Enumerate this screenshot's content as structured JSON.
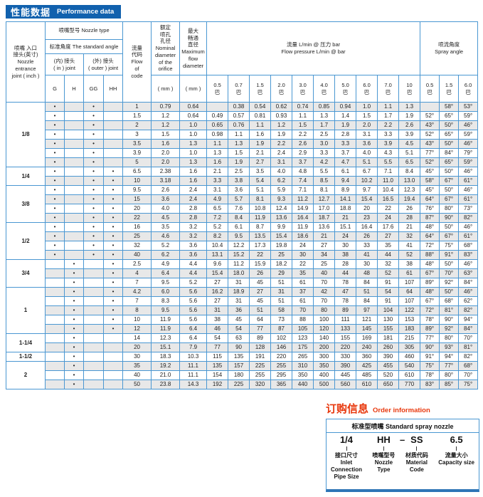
{
  "title": {
    "zh": "性能数据",
    "en": "Performance data"
  },
  "table": {
    "inlet_header_lines": [
      "喷嘴 入口",
      "接头(英寸)",
      "Nozzle",
      "entrance",
      "joint ( inch )"
    ],
    "nozzle_type_header": "喷嘴型号 Nozzle type",
    "standard_angle_header": "标准角度 The standard angle",
    "in_joint_lines": [
      "(内) 接头",
      "( in ) joint"
    ],
    "outer_joint_lines": [
      "(外) 接头",
      "( outer ) joint"
    ],
    "joint_cols": [
      "G",
      "H",
      "GG",
      "HH"
    ],
    "flow_code_lines": [
      "流量",
      "代码",
      "Flow",
      "of",
      "code"
    ],
    "orifice_lines": [
      "额定",
      "喷孔",
      "孔径",
      "Nominal",
      "diameter",
      "of the",
      "orifice"
    ],
    "max_flow_lines": [
      "最大",
      "畅通",
      "直径",
      "Maximum",
      "flow",
      "diameter"
    ],
    "mm_label": "( mm )",
    "flow_pressure_lines": [
      "流量 L/min @ 压力 bar",
      "Flow pressure L/min @ bar"
    ],
    "spray_angle_lines": [
      "喷流角度",
      "Spray angle"
    ],
    "bar_suffix": "巴",
    "flow_pressures": [
      "0.5",
      "0.7",
      "1.5",
      "2.0",
      "3.0",
      "4.0",
      "5.0",
      "6.0",
      "7.0",
      "10"
    ],
    "angle_pressures": [
      "0.5",
      "1.5",
      "6.0"
    ],
    "groups": [
      {
        "size": "1/8",
        "rows": [
          {
            "flow": "1",
            "orifice": "0.79",
            "max": "0.64",
            "dots": [
              "G",
              "GG"
            ],
            "flows": [
              "",
              "0.38",
              "0.54",
              "0.62",
              "0.74",
              "0.85",
              "0.94",
              "1.0",
              "1.1",
              "1.3"
            ],
            "angles": [
              "",
              "58°",
              "53°"
            ]
          },
          {
            "flow": "1.5",
            "orifice": "1.2",
            "max": "0.64",
            "dots": [
              "G",
              "GG"
            ],
            "flows": [
              "0.49",
              "0.57",
              "0.81",
              "0.93",
              "1.1",
              "1.3",
              "1.4",
              "1.5",
              "1.7",
              "1.9"
            ],
            "angles": [
              "52°",
              "65°",
              "59°"
            ]
          },
          {
            "flow": "2",
            "orifice": "1.2",
            "max": "1.0",
            "dots": [
              "G",
              "GG"
            ],
            "flows": [
              "0.65",
              "0.76",
              "1.1",
              "1.2",
              "1.5",
              "1.7",
              "1.9",
              "2.0",
              "2.2",
              "2.6"
            ],
            "angles": [
              "43°",
              "50°",
              "46°"
            ]
          },
          {
            "flow": "3",
            "orifice": "1.5",
            "max": "1.0",
            "dots": [
              "G",
              "GG"
            ],
            "flows": [
              "0.98",
              "1.1",
              "1.6",
              "1.9",
              "2.2",
              "2.5",
              "2.8",
              "3.1",
              "3.3",
              "3.9"
            ],
            "angles": [
              "52°",
              "65°",
              "59°"
            ]
          },
          {
            "flow": "3.5",
            "orifice": "1.6",
            "max": "1.3",
            "dots": [
              "G",
              "GG"
            ],
            "flows": [
              "1.1",
              "1.3",
              "1.9",
              "2.2",
              "2.6",
              "3.0",
              "3.3",
              "3.6",
              "3.9",
              "4.5"
            ],
            "angles": [
              "43°",
              "50°",
              "46°"
            ]
          },
          {
            "flow": "3.9",
            "orifice": "2.0",
            "max": "1.0",
            "dots": [
              "G",
              "GG"
            ],
            "flows": [
              "1.3",
              "1.5",
              "2.1",
              "2.4",
              "2.9",
              "3.3",
              "3.7",
              "4.0",
              "4.3",
              "5.1"
            ],
            "angles": [
              "77°",
              "84°",
              "79°"
            ]
          },
          {
            "flow": "5",
            "orifice": "2.0",
            "max": "1.3",
            "dots": [
              "G",
              "GG"
            ],
            "flows": [
              "1.6",
              "1.9",
              "2.7",
              "3.1",
              "3.7",
              "4.2",
              "4.7",
              "5.1",
              "5.5",
              "6.5"
            ],
            "angles": [
              "52°",
              "65°",
              "59°"
            ]
          }
        ]
      },
      {
        "size": "1/4",
        "rows": [
          {
            "flow": "6.5",
            "orifice": "2.38",
            "max": "1.6",
            "dots": [
              "G",
              "GG",
              "HH"
            ],
            "flows": [
              "2.1",
              "2.5",
              "3.5",
              "4.0",
              "4.8",
              "5.5",
              "6.1",
              "6.7",
              "7.1",
              "8.4"
            ],
            "angles": [
              "45°",
              "50°",
              "46°"
            ]
          },
          {
            "flow": "10",
            "orifice": "3.18",
            "max": "1.6",
            "dots": [
              "G",
              "GG",
              "HH"
            ],
            "flows": [
              "3.3",
              "3.8",
              "5.4",
              "6.2",
              "7.4",
              "8.5",
              "9.4",
              "10.2",
              "11.0",
              "13.0"
            ],
            "angles": [
              "58°",
              "67°",
              "61°"
            ]
          }
        ]
      },
      {
        "size": "3/8",
        "rows": [
          {
            "flow": "9.5",
            "orifice": "2.6",
            "max": "2.4",
            "dots": [
              "G",
              "GG",
              "HH"
            ],
            "flows": [
              "3.1",
              "3.6",
              "5.1",
              "5.9",
              "7.1",
              "8.1",
              "8.9",
              "9.7",
              "10.4",
              "12.3"
            ],
            "angles": [
              "45°",
              "50°",
              "46°"
            ]
          },
          {
            "flow": "15",
            "orifice": "3.6",
            "max": "2.4",
            "dots": [
              "G",
              "GG",
              "HH"
            ],
            "flows": [
              "4.9",
              "5.7",
              "8.1",
              "9.3",
              "11.2",
              "12.7",
              "14.1",
              "15.4",
              "16.5",
              "19.4"
            ],
            "angles": [
              "64°",
              "67°",
              "61°"
            ]
          },
          {
            "flow": "20",
            "orifice": "4.0",
            "max": "2.8",
            "dots": [
              "G",
              "GG",
              "HH"
            ],
            "flows": [
              "6.5",
              "7.6",
              "10.8",
              "12.4",
              "14.9",
              "17.0",
              "18.8",
              "20",
              "22",
              "26"
            ],
            "angles": [
              "76°",
              "80°",
              "73°"
            ]
          },
          {
            "flow": "22",
            "orifice": "4.5",
            "max": "2.8",
            "dots": [
              "G",
              "GG",
              "HH"
            ],
            "flows": [
              "7.2",
              "8.4",
              "11.9",
              "13.6",
              "16.4",
              "18.7",
              "21",
              "23",
              "24",
              "28"
            ],
            "angles": [
              "87°",
              "90°",
              "82°"
            ]
          }
        ]
      },
      {
        "size": "1/2",
        "rows": [
          {
            "flow": "16",
            "orifice": "3.5",
            "max": "3.2",
            "dots": [
              "G",
              "GG",
              "HH"
            ],
            "flows": [
              "5.2",
              "6.1",
              "8.7",
              "9.9",
              "11.9",
              "13.6",
              "15.1",
              "16.4",
              "17.6",
              "21"
            ],
            "angles": [
              "48°",
              "50°",
              "46°"
            ]
          },
          {
            "flow": "25",
            "orifice": "4.6",
            "max": "3.2",
            "dots": [
              "G",
              "GG",
              "HH"
            ],
            "flows": [
              "8.2",
              "9.5",
              "13.5",
              "15.4",
              "18.6",
              "21",
              "24",
              "26",
              "27",
              "32"
            ],
            "angles": [
              "64°",
              "67°",
              "61°"
            ]
          },
          {
            "flow": "32",
            "orifice": "5.2",
            "max": "3.6",
            "dots": [
              "G",
              "GG",
              "HH"
            ],
            "flows": [
              "10.4",
              "12.2",
              "17.3",
              "19.8",
              "24",
              "27",
              "30",
              "33",
              "35",
              "41"
            ],
            "angles": [
              "72°",
              "75°",
              "68°"
            ]
          },
          {
            "flow": "40",
            "orifice": "6.2",
            "max": "3.6",
            "dots": [
              "G",
              "GG",
              "HH"
            ],
            "flows": [
              "13.1",
              "15.2",
              "22",
              "25",
              "30",
              "34",
              "38",
              "41",
              "44",
              "52"
            ],
            "angles": [
              "88°",
              "91°",
              "83°"
            ]
          }
        ]
      },
      {
        "size": "3/4",
        "rows": [
          {
            "flow": "2.5",
            "orifice": "4.9",
            "max": "4.4",
            "dots": [
              "H",
              "HH"
            ],
            "flows": [
              "9.6",
              "11.2",
              "15.9",
              "18.2",
              "22",
              "25",
              "28",
              "30",
              "32",
              "38"
            ],
            "angles": [
              "48°",
              "50°",
              "46°"
            ]
          },
          {
            "flow": "4",
            "orifice": "6.4",
            "max": "4.4",
            "dots": [
              "H",
              "HH"
            ],
            "flows": [
              "15.4",
              "18.0",
              "26",
              "29",
              "35",
              "40",
              "44",
              "48",
              "52",
              "61"
            ],
            "angles": [
              "67°",
              "70°",
              "63°"
            ]
          },
          {
            "flow": "7",
            "orifice": "9.5",
            "max": "5.2",
            "dots": [
              "H",
              "HH"
            ],
            "flows": [
              "27",
              "31",
              "45",
              "51",
              "61",
              "70",
              "78",
              "84",
              "91",
              "107"
            ],
            "angles": [
              "89°",
              "92°",
              "84°"
            ]
          }
        ]
      },
      {
        "size": "1",
        "rows": [
          {
            "flow": "4.2",
            "orifice": "6.0",
            "max": "5.6",
            "dots": [
              "H",
              "HH"
            ],
            "flows": [
              "16.2",
              "18.9",
              "27",
              "31",
              "37",
              "42",
              "47",
              "51",
              "54",
              "64"
            ],
            "angles": [
              "48°",
              "50°",
              "46°"
            ]
          },
          {
            "flow": "7",
            "orifice": "8.3",
            "max": "5.6",
            "dots": [
              "H",
              "HH"
            ],
            "flows": [
              "27",
              "31",
              "45",
              "51",
              "61",
              "70",
              "78",
              "84",
              "91",
              "107"
            ],
            "angles": [
              "67°",
              "68°",
              "62°"
            ]
          },
          {
            "flow": "8",
            "orifice": "9.5",
            "max": "5.6",
            "dots": [
              "H",
              "HH"
            ],
            "flows": [
              "31",
              "36",
              "51",
              "58",
              "70",
              "80",
              "89",
              "97",
              "104",
              "122"
            ],
            "angles": [
              "72°",
              "81°",
              "82°"
            ]
          },
          {
            "flow": "10",
            "orifice": "11.9",
            "max": "5.6",
            "dots": [
              "H",
              "HH"
            ],
            "flows": [
              "38",
              "45",
              "64",
              "73",
              "88",
              "100",
              "111",
              "121",
              "130",
              "153"
            ],
            "angles": [
              "78°",
              "90°",
              "94°"
            ]
          },
          {
            "flow": "12",
            "orifice": "11.9",
            "max": "6.4",
            "dots": [
              "H",
              "HH"
            ],
            "flows": [
              "46",
              "54",
              "77",
              "87",
              "105",
              "120",
              "133",
              "145",
              "155",
              "183"
            ],
            "angles": [
              "89°",
              "92°",
              "84°"
            ]
          }
        ]
      },
      {
        "size": "1-1/4",
        "rows": [
          {
            "flow": "14",
            "orifice": "12.3",
            "max": "6.4",
            "dots": [
              "H"
            ],
            "flows": [
              "54",
              "63",
              "89",
              "102",
              "123",
              "140",
              "155",
              "169",
              "181",
              "215"
            ],
            "angles": [
              "77°",
              "80°",
              "70°"
            ]
          },
          {
            "flow": "20",
            "orifice": "15.1",
            "max": "7.9",
            "dots": [
              "H"
            ],
            "flows": [
              "77",
              "90",
              "128",
              "146",
              "175",
              "200",
              "220",
              "240",
              "260",
              "305"
            ],
            "angles": [
              "90°",
              "93°",
              "81°"
            ]
          }
        ]
      },
      {
        "size": "1-1/2",
        "rows": [
          {
            "flow": "30",
            "orifice": "18.3",
            "max": "10.3",
            "dots": [
              "H"
            ],
            "flows": [
              "115",
              "135",
              "191",
              "220",
              "265",
              "300",
              "330",
              "360",
              "390",
              "460"
            ],
            "angles": [
              "91°",
              "94°",
              "82°"
            ]
          }
        ]
      },
      {
        "size": "2",
        "rows": [
          {
            "flow": "35",
            "orifice": "19.2",
            "max": "11.1",
            "dots": [
              "H"
            ],
            "flows": [
              "135",
              "157",
              "225",
              "255",
              "310",
              "350",
              "390",
              "425",
              "455",
              "540"
            ],
            "angles": [
              "75°",
              "77°",
              "68°"
            ]
          },
          {
            "flow": "40",
            "orifice": "21.0",
            "max": "11.1",
            "dots": [
              "H"
            ],
            "flows": [
              "154",
              "180",
              "255",
              "295",
              "350",
              "400",
              "445",
              "485",
              "520",
              "610"
            ],
            "angles": [
              "78°",
              "80°",
              "70°"
            ]
          },
          {
            "flow": "50",
            "orifice": "23.8",
            "max": "14.3",
            "dots": [
              "H"
            ],
            "flows": [
              "192",
              "225",
              "320",
              "365",
              "440",
              "500",
              "560",
              "610",
              "650",
              "770"
            ],
            "angles": [
              "83°",
              "85°",
              "75°"
            ]
          }
        ]
      }
    ]
  },
  "order": {
    "title_zh": "订购信息",
    "title_en": "Order information",
    "box_header": "标准型喷嘴 Standard spray nozzle",
    "dash": "–",
    "columns": [
      {
        "code": "1/4",
        "label_lines": [
          "接口尺寸",
          "Inlet",
          "Connection",
          "Pipe Size"
        ]
      },
      {
        "code": "HH",
        "label_lines": [
          "喷嘴型号",
          "Nozzle",
          "Type"
        ]
      },
      {
        "code": "SS",
        "label_lines": [
          "材质代码",
          "Material",
          "Code"
        ]
      },
      {
        "code": "6.5",
        "label_lines": [
          "流量大小",
          "Capacity size"
        ]
      }
    ]
  },
  "colors": {
    "accent_blue": "#1161ae",
    "border_blue": "#4a97d2",
    "stripe_gray": "#e8e8e8",
    "red": "#e8380d"
  }
}
